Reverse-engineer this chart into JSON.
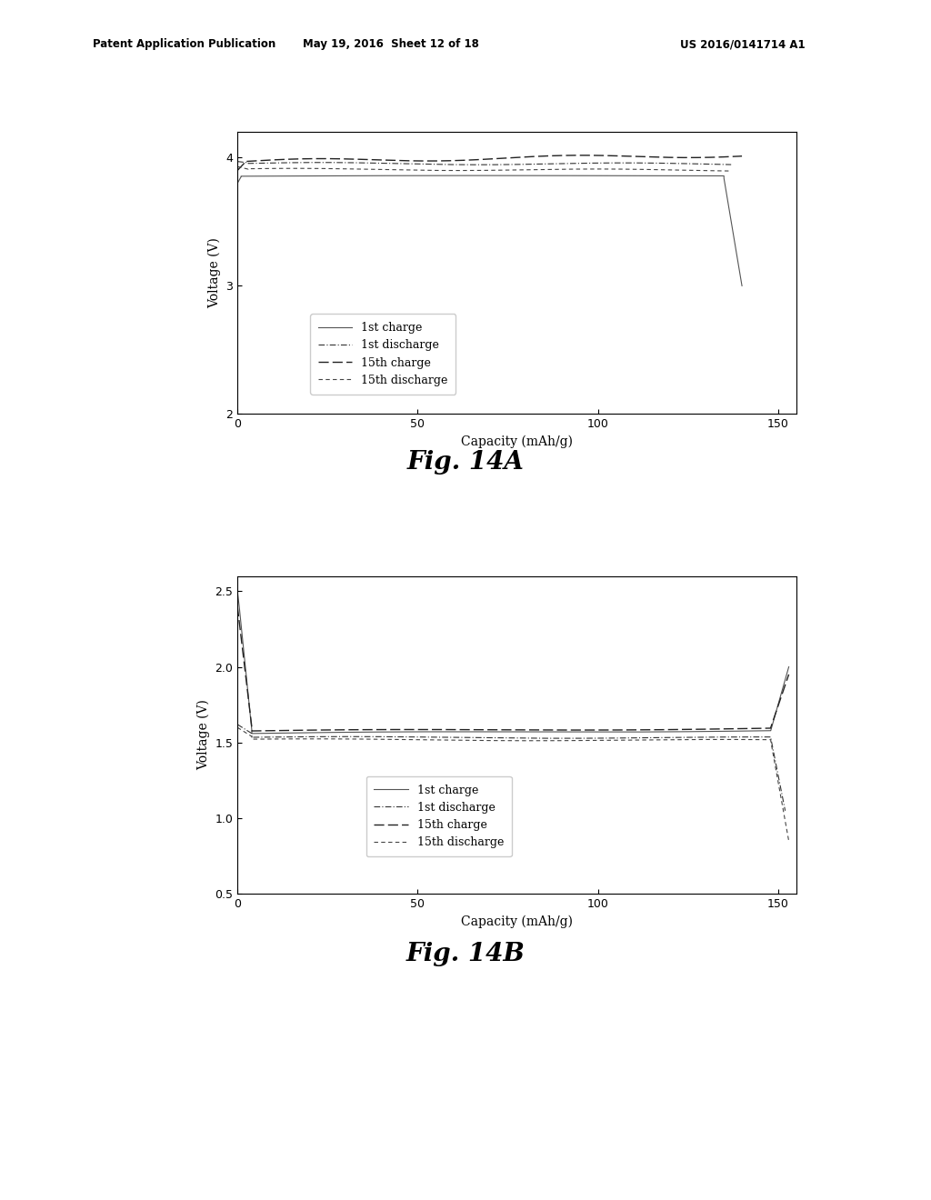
{
  "header_left": "Patent Application Publication",
  "header_mid": "May 19, 2016  Sheet 12 of 18",
  "header_right": "US 2016/0141714 A1",
  "fig_label_A": "Fig. 14A",
  "fig_label_B": "Fig. 14B",
  "background_color": "#ffffff",
  "plot_A": {
    "xlabel": "Capacity (mAh/g)",
    "ylabel": "Voltage (V)",
    "xlim": [
      0,
      155
    ],
    "ylim": [
      2,
      4.2
    ],
    "xticks": [
      0,
      50,
      100,
      150
    ],
    "yticks": [
      2,
      3,
      4
    ],
    "legend_labels": [
      "1st charge",
      "1st discharge",
      "15th charge",
      "15th discharge"
    ]
  },
  "plot_B": {
    "xlabel": "Capacity (mAh/g)",
    "ylabel": "Voltage (V)",
    "xlim": [
      0,
      155
    ],
    "ylim": [
      0.5,
      2.6
    ],
    "xticks": [
      0,
      50,
      100,
      150
    ],
    "yticks": [
      0.5,
      1,
      1.5,
      2,
      2.5
    ],
    "legend_labels": [
      "1st charge",
      "1st discharge",
      "15th charge",
      "15th discharge"
    ]
  }
}
